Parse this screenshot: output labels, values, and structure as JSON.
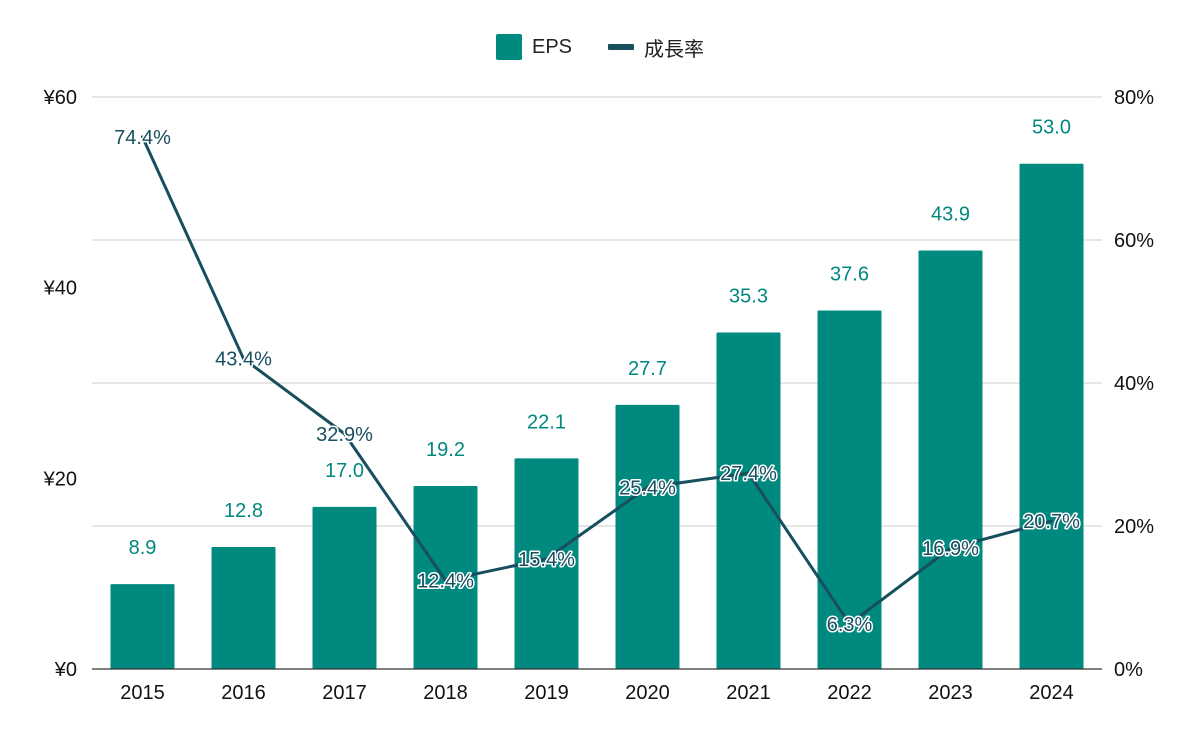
{
  "legend": {
    "eps_label": "EPS",
    "growth_label": "成長率"
  },
  "colors": {
    "bar": "#00897f",
    "line": "#174f5f",
    "grid": "#cccccc",
    "axis_text": "#111111",
    "bar_label": "#00897f"
  },
  "chart_data": {
    "type": "bar",
    "categories": [
      "2015",
      "2016",
      "2017",
      "2018",
      "2019",
      "2020",
      "2021",
      "2022",
      "2023",
      "2024"
    ],
    "series": [
      {
        "name": "EPS",
        "type": "bar",
        "axis": "left",
        "values": [
          8.9,
          12.8,
          17.0,
          19.2,
          22.1,
          27.7,
          35.3,
          37.6,
          43.9,
          53.0
        ]
      },
      {
        "name": "成長率",
        "type": "line",
        "axis": "right",
        "values": [
          74.4,
          43.4,
          32.9,
          12.4,
          15.4,
          25.4,
          27.4,
          6.3,
          16.9,
          20.7
        ]
      }
    ],
    "bar_labels": [
      "8.9",
      "12.8",
      "17.0",
      "19.2",
      "22.1",
      "27.7",
      "35.3",
      "37.6",
      "43.9",
      "53.0"
    ],
    "line_labels": [
      "74.4%",
      "43.4%",
      "32.9%",
      "12.4%",
      "15.4%",
      "25.4%",
      "27.4%",
      "6.3%",
      "16.9%",
      "20.7%"
    ],
    "y_left": {
      "lim": [
        0,
        60
      ],
      "ticks": [
        0,
        20,
        40,
        60
      ],
      "tick_labels": [
        "¥0",
        "¥20",
        "¥40",
        "¥60"
      ]
    },
    "y_right": {
      "lim": [
        0,
        80
      ],
      "ticks": [
        0,
        20,
        40,
        60,
        80
      ],
      "tick_labels": [
        "0%",
        "20%",
        "40%",
        "60%",
        "80%"
      ]
    },
    "grid": true,
    "legend_position": "top-center"
  }
}
